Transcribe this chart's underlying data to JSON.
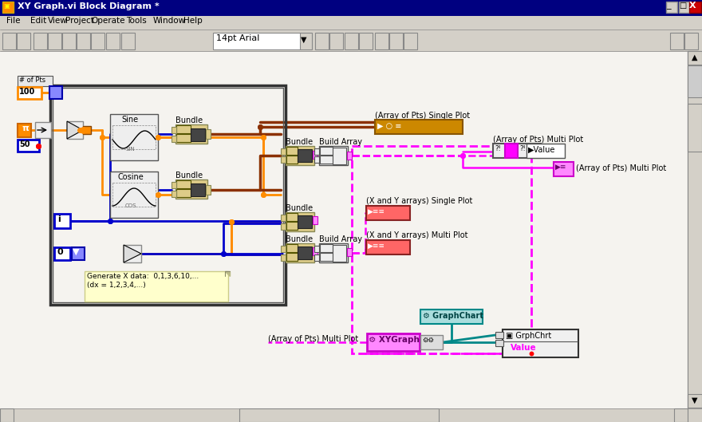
{
  "title": "XY Graph.vi Block Diagram *",
  "titlebar_color": "#000080",
  "titlebar_text_color": "#ffffff",
  "menu_bg": "#d4d0c8",
  "toolbar_bg": "#d4d0c8",
  "canvas_bg": "#f0eeec",
  "menu_items": [
    "File",
    "Edit",
    "View",
    "Project",
    "Operate",
    "Tools",
    "Window",
    "Help"
  ],
  "font_label": "14pt Arial",
  "colors": {
    "orange": "#ff8c00",
    "blue": "#0000cc",
    "brown": "#8B4000",
    "pink": "#ff00ff",
    "teal": "#008888",
    "for_loop_border": "#333333",
    "block_bg": "#eeeecc",
    "indicator_bg": "#eeeeee",
    "node_bg": "#eeeecc"
  }
}
